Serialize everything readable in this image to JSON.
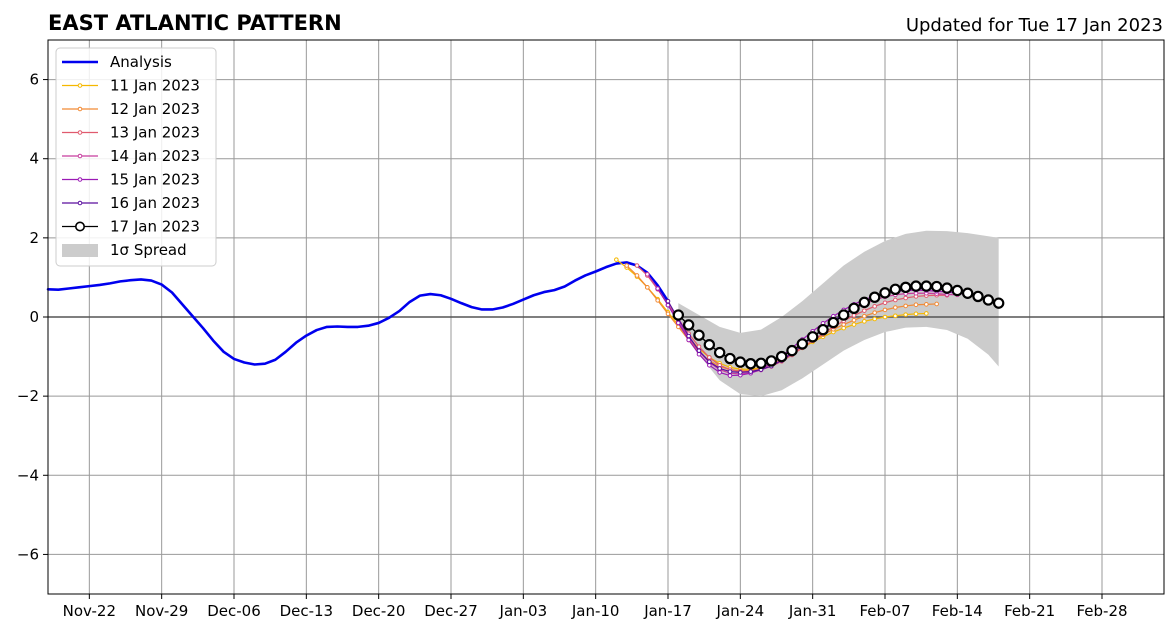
{
  "chart_data": {
    "type": "line",
    "title": "EAST ATLANTIC PATTERN",
    "subtitle": "Updated for Tue 17 Jan 2023",
    "xlabel": "",
    "ylabel": "",
    "x_range": [
      "2022-11-18",
      "2023-03-06"
    ],
    "ylim": [
      -7,
      7
    ],
    "y_ticks": [
      -6,
      -4,
      -2,
      0,
      2,
      4,
      6
    ],
    "y_tick_labels": [
      "−6",
      "−4",
      "−2",
      "0",
      "2",
      "4",
      "6"
    ],
    "x_ticks": [
      {
        "date": "2022-11-22",
        "label": "Nov-22"
      },
      {
        "date": "2022-11-29",
        "label": "Nov-29"
      },
      {
        "date": "2022-12-06",
        "label": "Dec-06"
      },
      {
        "date": "2022-12-13",
        "label": "Dec-13"
      },
      {
        "date": "2022-12-20",
        "label": "Dec-20"
      },
      {
        "date": "2022-12-27",
        "label": "Dec-27"
      },
      {
        "date": "2023-01-03",
        "label": "Jan-03"
      },
      {
        "date": "2023-01-10",
        "label": "Jan-10"
      },
      {
        "date": "2023-01-17",
        "label": "Jan-17"
      },
      {
        "date": "2023-01-24",
        "label": "Jan-24"
      },
      {
        "date": "2023-01-31",
        "label": "Jan-31"
      },
      {
        "date": "2023-02-07",
        "label": "Feb-07"
      },
      {
        "date": "2023-02-14",
        "label": "Feb-14"
      },
      {
        "date": "2023-02-21",
        "label": "Feb-21"
      },
      {
        "date": "2023-02-28",
        "label": "Feb-28"
      }
    ],
    "grid": true,
    "legend_position": "top-left",
    "legend": [
      "Analysis",
      "11 Jan 2023",
      "12 Jan 2023",
      "13 Jan 2023",
      "14 Jan 2023",
      "15 Jan 2023",
      "16 Jan 2023",
      "17 Jan 2023",
      "1σ Spread"
    ],
    "analysis": {
      "name": "Analysis",
      "color": "#0000ee",
      "points": [
        [
          "2022-11-18",
          0.7
        ],
        [
          "2022-11-19",
          0.69
        ],
        [
          "2022-11-20",
          0.72
        ],
        [
          "2022-11-21",
          0.75
        ],
        [
          "2022-11-22",
          0.78
        ],
        [
          "2022-11-23",
          0.81
        ],
        [
          "2022-11-24",
          0.85
        ],
        [
          "2022-11-25",
          0.9
        ],
        [
          "2022-11-26",
          0.93
        ],
        [
          "2022-11-27",
          0.95
        ],
        [
          "2022-11-28",
          0.92
        ],
        [
          "2022-11-29",
          0.82
        ],
        [
          "2022-11-30",
          0.62
        ],
        [
          "2022-12-01",
          0.32
        ],
        [
          "2022-12-02",
          0.02
        ],
        [
          "2022-12-03",
          -0.28
        ],
        [
          "2022-12-04",
          -0.6
        ],
        [
          "2022-12-05",
          -0.88
        ],
        [
          "2022-12-06",
          -1.06
        ],
        [
          "2022-12-07",
          -1.15
        ],
        [
          "2022-12-08",
          -1.2
        ],
        [
          "2022-12-09",
          -1.18
        ],
        [
          "2022-12-10",
          -1.08
        ],
        [
          "2022-12-11",
          -0.88
        ],
        [
          "2022-12-12",
          -0.65
        ],
        [
          "2022-12-13",
          -0.47
        ],
        [
          "2022-12-14",
          -0.33
        ],
        [
          "2022-12-15",
          -0.25
        ],
        [
          "2022-12-16",
          -0.24
        ],
        [
          "2022-12-17",
          -0.25
        ],
        [
          "2022-12-18",
          -0.25
        ],
        [
          "2022-12-19",
          -0.22
        ],
        [
          "2022-12-20",
          -0.15
        ],
        [
          "2022-12-21",
          -0.02
        ],
        [
          "2022-12-22",
          0.15
        ],
        [
          "2022-12-23",
          0.38
        ],
        [
          "2022-12-24",
          0.54
        ],
        [
          "2022-12-25",
          0.58
        ],
        [
          "2022-12-26",
          0.55
        ],
        [
          "2022-12-27",
          0.46
        ],
        [
          "2022-12-28",
          0.35
        ],
        [
          "2022-12-29",
          0.25
        ],
        [
          "2022-12-30",
          0.19
        ],
        [
          "2022-12-31",
          0.19
        ],
        [
          "2023-01-01",
          0.24
        ],
        [
          "2023-01-02",
          0.33
        ],
        [
          "2023-01-03",
          0.44
        ],
        [
          "2023-01-04",
          0.55
        ],
        [
          "2023-01-05",
          0.63
        ],
        [
          "2023-01-06",
          0.68
        ],
        [
          "2023-01-07",
          0.77
        ],
        [
          "2023-01-08",
          0.92
        ],
        [
          "2023-01-09",
          1.05
        ],
        [
          "2023-01-10",
          1.15
        ],
        [
          "2023-01-11",
          1.26
        ],
        [
          "2023-01-12",
          1.35
        ],
        [
          "2023-01-13",
          1.38
        ],
        [
          "2023-01-14",
          1.3
        ],
        [
          "2023-01-15",
          1.12
        ],
        [
          "2023-01-16",
          0.8
        ],
        [
          "2023-01-17",
          0.4
        ]
      ]
    },
    "spread": {
      "name": "1σ Spread",
      "color": "#cccccc",
      "upper": [
        [
          "2023-01-18",
          0.35
        ],
        [
          "2023-01-20",
          0.05
        ],
        [
          "2023-01-22",
          -0.25
        ],
        [
          "2023-01-24",
          -0.4
        ],
        [
          "2023-01-26",
          -0.32
        ],
        [
          "2023-01-28",
          0.0
        ],
        [
          "2023-01-30",
          0.4
        ],
        [
          "2023-02-01",
          0.85
        ],
        [
          "2023-02-03",
          1.3
        ],
        [
          "2023-02-05",
          1.65
        ],
        [
          "2023-02-07",
          1.92
        ],
        [
          "2023-02-09",
          2.1
        ],
        [
          "2023-02-11",
          2.18
        ],
        [
          "2023-02-13",
          2.17
        ],
        [
          "2023-02-15",
          2.12
        ],
        [
          "2023-02-17",
          2.04
        ],
        [
          "2023-02-18",
          2.0
        ]
      ],
      "lower": [
        [
          "2023-01-18",
          -0.25
        ],
        [
          "2023-01-20",
          -0.95
        ],
        [
          "2023-01-22",
          -1.6
        ],
        [
          "2023-01-24",
          -1.95
        ],
        [
          "2023-01-26",
          -2.0
        ],
        [
          "2023-01-28",
          -1.85
        ],
        [
          "2023-01-30",
          -1.55
        ],
        [
          "2023-02-01",
          -1.2
        ],
        [
          "2023-02-03",
          -0.85
        ],
        [
          "2023-02-05",
          -0.58
        ],
        [
          "2023-02-07",
          -0.38
        ],
        [
          "2023-02-09",
          -0.27
        ],
        [
          "2023-02-11",
          -0.25
        ],
        [
          "2023-02-13",
          -0.33
        ],
        [
          "2023-02-15",
          -0.55
        ],
        [
          "2023-02-17",
          -0.95
        ],
        [
          "2023-02-18",
          -1.25
        ]
      ]
    },
    "forecasts": [
      {
        "name": "11 Jan 2023",
        "color": "#f5b800",
        "start": "2023-01-12",
        "end": "2023-02-11",
        "values": [
          1.45,
          1.25,
          1.02,
          0.75,
          0.45,
          0.12,
          -0.2,
          -0.52,
          -0.8,
          -1.02,
          -1.17,
          -1.27,
          -1.32,
          -1.32,
          -1.28,
          -1.2,
          -1.08,
          -0.93,
          -0.78,
          -0.63,
          -0.5,
          -0.38,
          -0.28,
          -0.19,
          -0.11,
          -0.05,
          0.0,
          0.03,
          0.06,
          0.08,
          0.09
        ]
      },
      {
        "name": "12 Jan 2023",
        "color": "#f28a35",
        "start": "2023-01-13",
        "end": "2023-02-12",
        "values": [
          1.3,
          1.05,
          0.75,
          0.42,
          0.08,
          -0.25,
          -0.58,
          -0.88,
          -1.1,
          -1.25,
          -1.33,
          -1.36,
          -1.35,
          -1.3,
          -1.2,
          -1.07,
          -0.92,
          -0.76,
          -0.6,
          -0.45,
          -0.31,
          -0.19,
          -0.08,
          0.02,
          0.11,
          0.18,
          0.24,
          0.28,
          0.31,
          0.32,
          0.33
        ]
      },
      {
        "name": "13 Jan 2023",
        "color": "#e05a6e",
        "start": "2023-01-14",
        "end": "2023-02-13",
        "values": [
          1.3,
          1.05,
          0.7,
          0.32,
          -0.05,
          -0.42,
          -0.75,
          -1.02,
          -1.22,
          -1.33,
          -1.38,
          -1.38,
          -1.33,
          -1.25,
          -1.12,
          -0.96,
          -0.78,
          -0.6,
          -0.42,
          -0.25,
          -0.1,
          0.04,
          0.16,
          0.27,
          0.36,
          0.43,
          0.48,
          0.52,
          0.54,
          0.55,
          0.55
        ]
      },
      {
        "name": "14 Jan 2023",
        "color": "#c63c9e",
        "start": "2023-01-15",
        "end": "2023-02-14",
        "values": [
          1.08,
          0.72,
          0.3,
          -0.12,
          -0.52,
          -0.87,
          -1.15,
          -1.33,
          -1.42,
          -1.44,
          -1.41,
          -1.34,
          -1.23,
          -1.08,
          -0.9,
          -0.7,
          -0.5,
          -0.3,
          -0.12,
          0.05,
          0.2,
          0.33,
          0.43,
          0.51,
          0.56,
          0.59,
          0.6,
          0.6,
          0.59,
          0.57,
          0.56
        ]
      },
      {
        "name": "15 Jan 2023",
        "color": "#9b1ab5",
        "start": "2023-01-16",
        "end": "2023-02-15",
        "values": [
          0.72,
          0.3,
          -0.15,
          -0.58,
          -0.94,
          -1.22,
          -1.4,
          -1.48,
          -1.47,
          -1.42,
          -1.32,
          -1.17,
          -0.99,
          -0.78,
          -0.57,
          -0.36,
          -0.16,
          0.02,
          0.18,
          0.32,
          0.44,
          0.53,
          0.6,
          0.65,
          0.67,
          0.68,
          0.67,
          0.65,
          0.63,
          0.6,
          0.57
        ]
      },
      {
        "name": "16 Jan 2023",
        "color": "#5a0f9e",
        "start": "2023-01-17",
        "end": "2023-02-16",
        "values": [
          0.4,
          -0.05,
          -0.48,
          -0.85,
          -1.13,
          -1.3,
          -1.38,
          -1.4,
          -1.38,
          -1.33,
          -1.24,
          -1.1,
          -0.92,
          -0.72,
          -0.51,
          -0.3,
          -0.1,
          0.08,
          0.24,
          0.38,
          0.5,
          0.6,
          0.66,
          0.7,
          0.72,
          0.72,
          0.71,
          0.68,
          0.64,
          0.59,
          0.55
        ]
      },
      {
        "name": "17 Jan 2023",
        "color": "#000000",
        "start": "2023-01-18",
        "end": "2023-02-18",
        "values": [
          0.05,
          -0.2,
          -0.46,
          -0.7,
          -0.9,
          -1.05,
          -1.14,
          -1.18,
          -1.17,
          -1.11,
          -1.0,
          -0.85,
          -0.68,
          -0.5,
          -0.32,
          -0.14,
          0.05,
          0.22,
          0.37,
          0.5,
          0.61,
          0.7,
          0.75,
          0.78,
          0.78,
          0.77,
          0.73,
          0.67,
          0.6,
          0.52,
          0.43,
          0.35
        ]
      }
    ]
  }
}
